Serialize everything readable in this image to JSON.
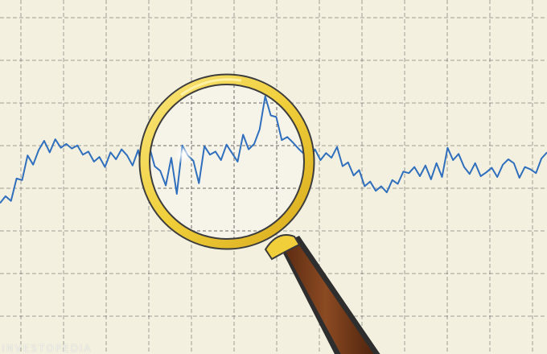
{
  "illustration": {
    "subject": "magnifying-glass-over-line-chart",
    "colors": {
      "background": "#f3f0df",
      "grid": "#3a3a3a",
      "line": "#2f6fbd",
      "lens_rim_outer": "#3d3d3d",
      "lens_rim_gold": "#f0cf3a",
      "handle": "#7a3f1e"
    },
    "watermark": "INVESTOPEDIA"
  },
  "chart_data": {
    "type": "line",
    "x": [
      0,
      1,
      2,
      3,
      4,
      5,
      6,
      7,
      8,
      9,
      10,
      11,
      12,
      13,
      14,
      15,
      16,
      17,
      18,
      19,
      20,
      21,
      22,
      23,
      24,
      25,
      26,
      27,
      28,
      29,
      30,
      31,
      32,
      33,
      34,
      35,
      36,
      37,
      38,
      39,
      40,
      41,
      42,
      43,
      44,
      45,
      46,
      47,
      48,
      49,
      50,
      51,
      52,
      53,
      54,
      55,
      56,
      57,
      58,
      59,
      60,
      61,
      62,
      63,
      64,
      65,
      66,
      67,
      68,
      69,
      70,
      71,
      72,
      73,
      74,
      75,
      76,
      77,
      78,
      79,
      80,
      81,
      82,
      83,
      84,
      85,
      86,
      87,
      88,
      89,
      90,
      91,
      92,
      93,
      94,
      95,
      96,
      97,
      98,
      99
    ],
    "series": [
      {
        "values": [
          1.6,
          2.5,
          1.9,
          4.8,
          4.6,
          7.8,
          6.6,
          8.5,
          9.7,
          8.2,
          9.9,
          8.8,
          9.3,
          8.7,
          9.1,
          7.9,
          8.3,
          7.0,
          7.6,
          6.3,
          8.2,
          7.3,
          8.6,
          7.8,
          6.5,
          8.5,
          5.2,
          9.0,
          6.4,
          5.8,
          3.9,
          7.5,
          2.8,
          9.1,
          7.8,
          7.1,
          4.2,
          9.0,
          7.9,
          8.3,
          7.2,
          9.2,
          8.1,
          7.0,
          10.5,
          8.6,
          9.3,
          11.2,
          15.5,
          13.0,
          12.8,
          9.8,
          10.2,
          9.5,
          8.7,
          8.0,
          7.2,
          8.6,
          7.2,
          8.1,
          7.5,
          8.9,
          6.4,
          6.9,
          5.2,
          5.9,
          3.8,
          4.4,
          3.2,
          3.8,
          3.0,
          4.6,
          4.1,
          5.7,
          5.5,
          6.3,
          5.1,
          6.5,
          4.7,
          6.8,
          5.0,
          8.8,
          7.2,
          8.0,
          6.3,
          5.4,
          6.8,
          5.1,
          5.6,
          6.2,
          5.0,
          6.6,
          7.3,
          6.8,
          4.9,
          6.3,
          6.0,
          5.5,
          7.4,
          8.2
        ]
      }
    ],
    "xlim": [
      0,
      99
    ],
    "ylim": [
      -18,
      28
    ],
    "grid": true
  }
}
